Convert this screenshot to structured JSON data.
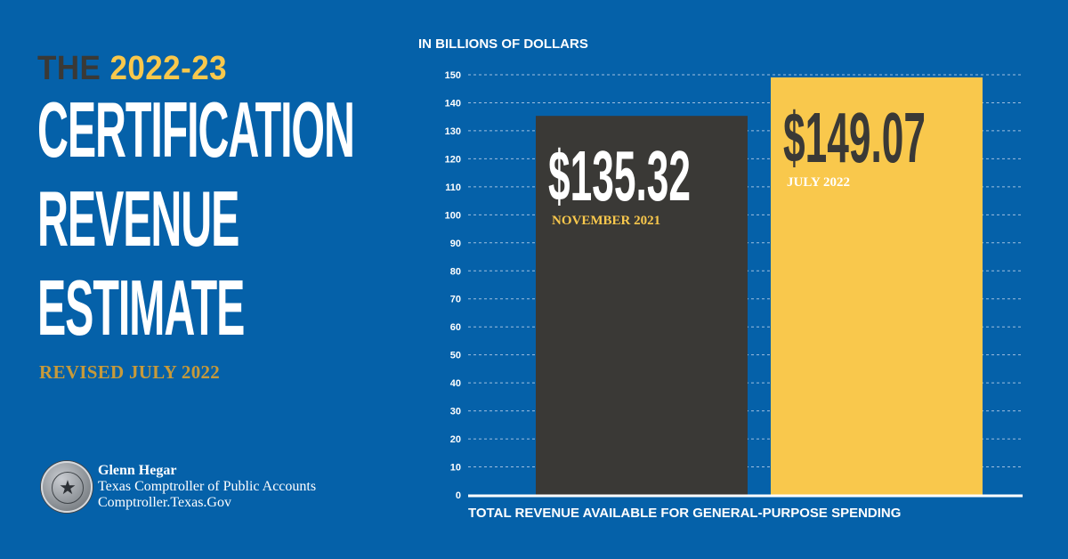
{
  "header": {
    "kicker_the": "THE",
    "kicker_year": "2022-23",
    "headline_lines": [
      "CERTIFICATION",
      "REVENUE",
      "ESTIMATE"
    ],
    "revised": "REVISED JULY 2022"
  },
  "credit": {
    "name": "Glenn Hegar",
    "office": "Texas Comptroller of Public Accounts",
    "site": "Comptroller.Texas.Gov"
  },
  "colors": {
    "background": "#0561a9",
    "bar_nov": "#3a3936",
    "bar_jul": "#f9c84c",
    "label_gold": "#f9c84c"
  },
  "chart_data": {
    "type": "bar",
    "title": "",
    "ylabel": "IN BILLIONS OF DOLLARS",
    "xlabel": "TOTAL REVENUE AVAILABLE FOR GENERAL-PURPOSE SPENDING",
    "ylim": [
      0,
      150
    ],
    "yticks": [
      0,
      10,
      20,
      30,
      40,
      50,
      60,
      70,
      80,
      90,
      100,
      110,
      120,
      130,
      140,
      150
    ],
    "grid": true,
    "bars": [
      {
        "period": "NOVEMBER 2021",
        "value": 135.32,
        "label": "$135.32",
        "color": "#3a3936",
        "text_color": "#ffffff",
        "period_color": "#f9c84c"
      },
      {
        "period": "JULY 2022",
        "value": 149.07,
        "label": "$149.07",
        "color": "#f9c84c",
        "text_color": "#3a3936",
        "period_color": "#ffffff"
      }
    ]
  }
}
